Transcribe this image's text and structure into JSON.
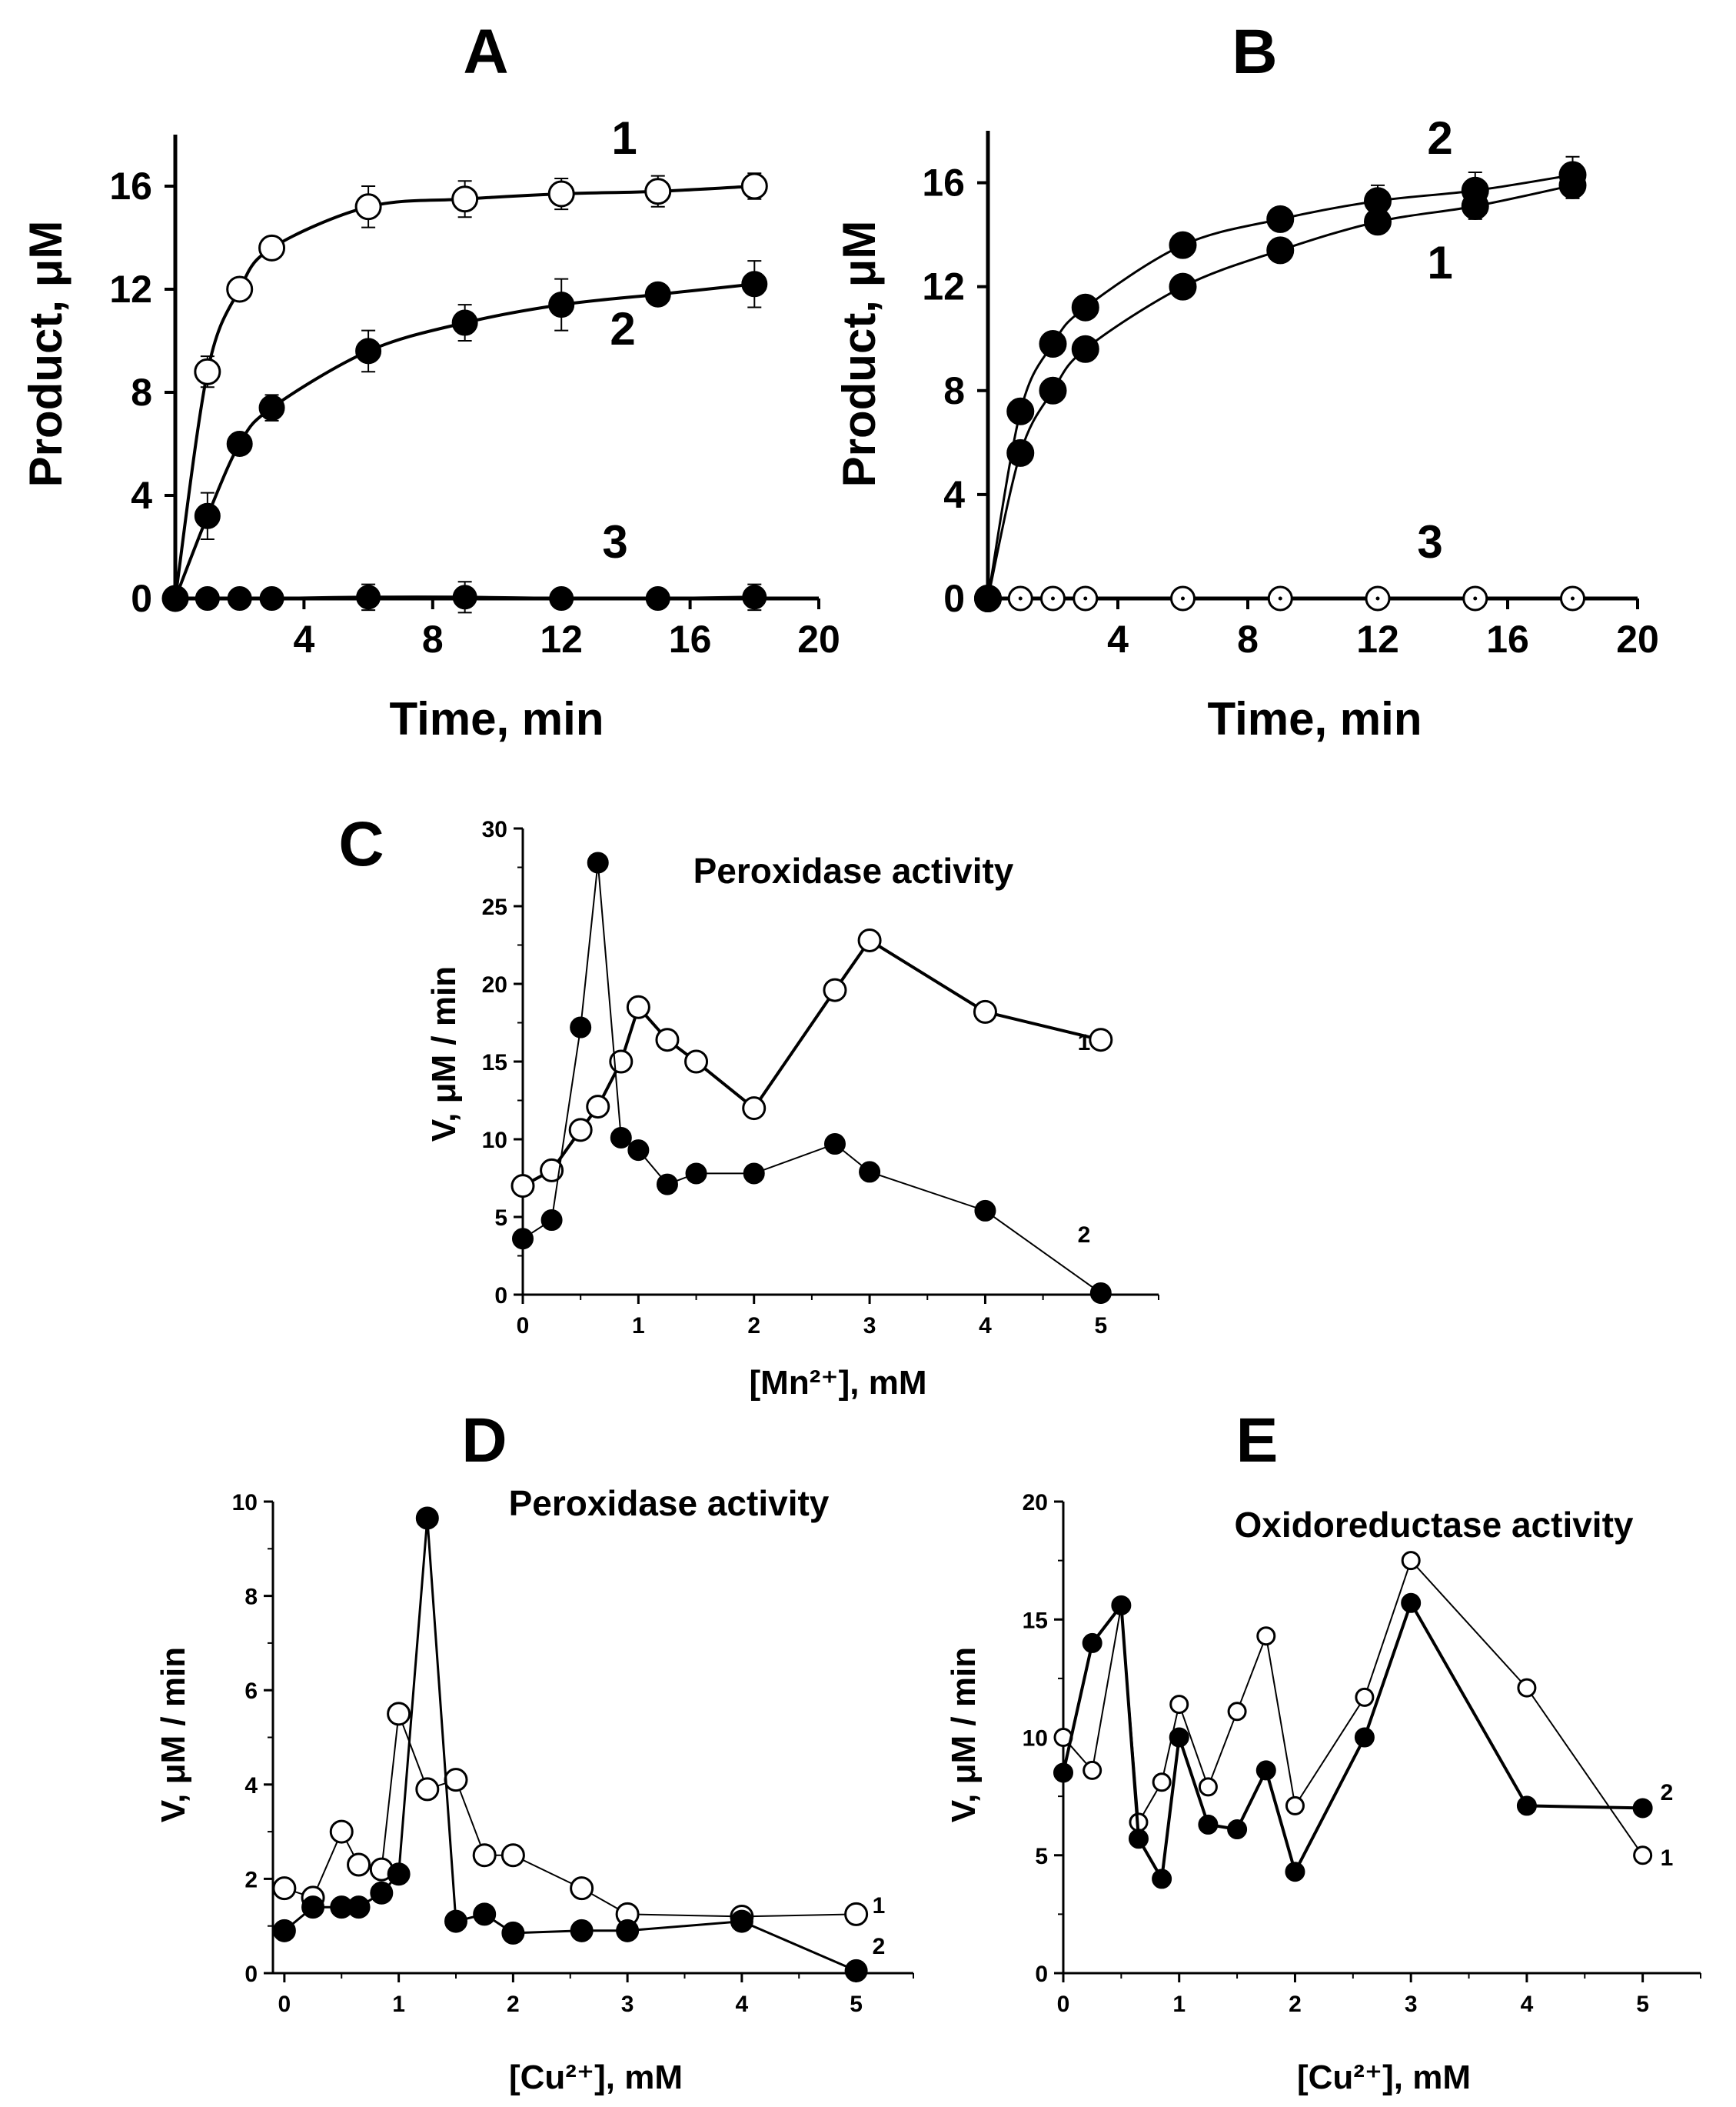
{
  "chart_data": [
    {
      "id": "A",
      "type": "line",
      "panel_label": "A",
      "title": "",
      "xlabel": "Time, min",
      "ylabel": "Product, μM",
      "xlim": [
        0,
        20
      ],
      "ylim": [
        0,
        18
      ],
      "x_ticks": [
        "4",
        "8",
        "12",
        "16",
        "20"
      ],
      "y_ticks": [
        "0",
        "4",
        "8",
        "12",
        "16"
      ],
      "series": [
        {
          "name": "1",
          "marker": "open",
          "x": [
            0,
            1,
            2,
            3,
            6,
            9,
            12,
            15,
            18
          ],
          "y": [
            0,
            8.8,
            12.0,
            13.6,
            15.2,
            15.5,
            15.7,
            15.8,
            16.0
          ],
          "err": [
            0,
            0.6,
            0.3,
            0.3,
            0.8,
            0.7,
            0.6,
            0.6,
            0.5
          ]
        },
        {
          "name": "2",
          "marker": "filled",
          "x": [
            0,
            1,
            2,
            3,
            6,
            9,
            12,
            15,
            18
          ],
          "y": [
            0,
            3.2,
            6.0,
            7.4,
            9.6,
            10.7,
            11.4,
            11.8,
            12.2
          ],
          "err": [
            0,
            0.9,
            0.3,
            0.5,
            0.8,
            0.7,
            1.0,
            0.4,
            0.9
          ]
        },
        {
          "name": "3",
          "marker": "filled",
          "x": [
            0,
            1,
            2,
            3,
            6,
            9,
            12,
            15,
            18
          ],
          "y": [
            0,
            0,
            0,
            0,
            0.05,
            0.05,
            0,
            0,
            0.05
          ],
          "err": [
            0,
            0,
            0,
            0,
            0.5,
            0.6,
            0,
            0,
            0.5
          ]
        }
      ]
    },
    {
      "id": "B",
      "type": "line",
      "panel_label": "B",
      "title": "",
      "xlabel": "Time, min",
      "ylabel": "Product, μM",
      "xlim": [
        0,
        20
      ],
      "ylim": [
        0,
        18
      ],
      "x_ticks": [
        "4",
        "8",
        "12",
        "16",
        "20"
      ],
      "y_ticks": [
        "0",
        "4",
        "8",
        "12",
        "16"
      ],
      "series": [
        {
          "name": "1",
          "marker": "filled",
          "x": [
            0,
            1,
            2,
            3,
            6,
            9,
            12,
            15,
            18
          ],
          "y": [
            0,
            5.6,
            8.0,
            9.6,
            12.0,
            13.4,
            14.5,
            15.1,
            15.9
          ],
          "err": [
            0,
            0.3,
            0.3,
            0.4,
            0.3,
            0.3,
            0.4,
            0.5,
            0.5
          ]
        },
        {
          "name": "2",
          "marker": "filled",
          "x": [
            0,
            1,
            2,
            3,
            6,
            9,
            12,
            15,
            18
          ],
          "y": [
            0,
            7.2,
            9.8,
            11.2,
            13.6,
            14.6,
            15.3,
            15.7,
            16.3
          ],
          "err": [
            0,
            0.3,
            0.3,
            0.3,
            0.3,
            0.3,
            0.6,
            0.7,
            0.7
          ]
        },
        {
          "name": "3",
          "marker": "dotted",
          "x": [
            0,
            1,
            2,
            3,
            6,
            9,
            12,
            15,
            18
          ],
          "y": [
            0,
            0,
            0,
            0,
            0,
            0,
            0,
            0,
            0
          ],
          "err": [
            0,
            0,
            0,
            0,
            0,
            0,
            0,
            0,
            0
          ]
        }
      ]
    },
    {
      "id": "C",
      "type": "line",
      "panel_label": "C",
      "title": "Peroxidase activity",
      "xlabel": "[Mn²⁺], mM",
      "ylabel": "V, μM / min",
      "xlim": [
        0,
        5.5
      ],
      "ylim": [
        0,
        30
      ],
      "x_ticks": [
        "0",
        "1",
        "2",
        "3",
        "4",
        "5"
      ],
      "y_ticks": [
        "0",
        "5",
        "10",
        "15",
        "20",
        "25",
        "30"
      ],
      "series": [
        {
          "name": "1",
          "marker": "open",
          "x": [
            0,
            0.25,
            0.5,
            0.65,
            0.85,
            1.0,
            1.25,
            1.5,
            2.0,
            2.7,
            3.0,
            4.0,
            5.0
          ],
          "y": [
            7.0,
            8.0,
            10.6,
            12.1,
            15.0,
            18.5,
            16.4,
            15.0,
            12.0,
            19.6,
            22.8,
            18.2,
            16.4
          ]
        },
        {
          "name": "2",
          "marker": "filled",
          "x": [
            0,
            0.25,
            0.5,
            0.65,
            0.85,
            1.0,
            1.25,
            1.5,
            2.0,
            2.7,
            3.0,
            4.0,
            5.0
          ],
          "y": [
            3.6,
            4.8,
            17.2,
            27.8,
            10.1,
            9.3,
            7.1,
            7.8,
            7.8,
            9.7,
            7.9,
            5.4,
            0.1
          ]
        }
      ]
    },
    {
      "id": "D",
      "type": "line",
      "panel_label": "D",
      "title": "Peroxidase activity",
      "xlabel": "[Cu²⁺], mM",
      "ylabel": "V, μM / min",
      "xlim": [
        -0.1,
        5.5
      ],
      "ylim": [
        0,
        10
      ],
      "x_ticks": [
        "0",
        "1",
        "2",
        "3",
        "4",
        "5"
      ],
      "y_ticks": [
        "0",
        "2",
        "4",
        "6",
        "8",
        "10"
      ],
      "series": [
        {
          "name": "1",
          "marker": "open",
          "x": [
            0,
            0.25,
            0.5,
            0.65,
            0.85,
            1.0,
            1.25,
            1.5,
            1.75,
            2.0,
            2.6,
            3.0,
            4.0,
            5.0
          ],
          "y": [
            1.8,
            1.6,
            3.0,
            2.3,
            2.2,
            5.5,
            3.9,
            4.1,
            2.5,
            2.5,
            1.8,
            1.25,
            1.2,
            1.25
          ]
        },
        {
          "name": "2",
          "marker": "filled",
          "x": [
            0,
            0.25,
            0.5,
            0.65,
            0.85,
            1.0,
            1.25,
            1.5,
            1.75,
            2.0,
            2.6,
            3.0,
            4.0,
            5.0
          ],
          "y": [
            0.9,
            1.4,
            1.4,
            1.4,
            1.7,
            2.1,
            9.65,
            1.1,
            1.25,
            0.85,
            0.9,
            0.9,
            1.1,
            0.05
          ]
        }
      ]
    },
    {
      "id": "E",
      "type": "line",
      "panel_label": "E",
      "title": "Oxidoreductase activity",
      "xlabel": "[Cu²⁺], mM",
      "ylabel": "V, μM / min",
      "xlim": [
        0,
        5.5
      ],
      "ylim": [
        0,
        20
      ],
      "x_ticks": [
        "0",
        "1",
        "2",
        "3",
        "4",
        "5"
      ],
      "y_ticks": [
        "0",
        "5",
        "10",
        "15",
        "20"
      ],
      "series": [
        {
          "name": "1",
          "marker": "open",
          "x": [
            0,
            0.25,
            0.5,
            0.65,
            0.85,
            1.0,
            1.25,
            1.5,
            1.75,
            2.0,
            2.6,
            3.0,
            4.0,
            5.0
          ],
          "y": [
            10.0,
            8.6,
            15.6,
            6.4,
            8.1,
            11.4,
            7.9,
            11.1,
            14.3,
            7.1,
            11.7,
            17.5,
            12.1,
            5.0
          ]
        },
        {
          "name": "2",
          "marker": "filled",
          "x": [
            0,
            0.25,
            0.5,
            0.65,
            0.85,
            1.0,
            1.25,
            1.5,
            1.75,
            2.0,
            2.6,
            3.0,
            4.0,
            5.0
          ],
          "y": [
            8.5,
            14.0,
            15.6,
            5.7,
            4.0,
            10.0,
            6.3,
            6.1,
            8.6,
            4.3,
            10.0,
            15.7,
            7.1,
            7.0
          ]
        }
      ]
    }
  ]
}
